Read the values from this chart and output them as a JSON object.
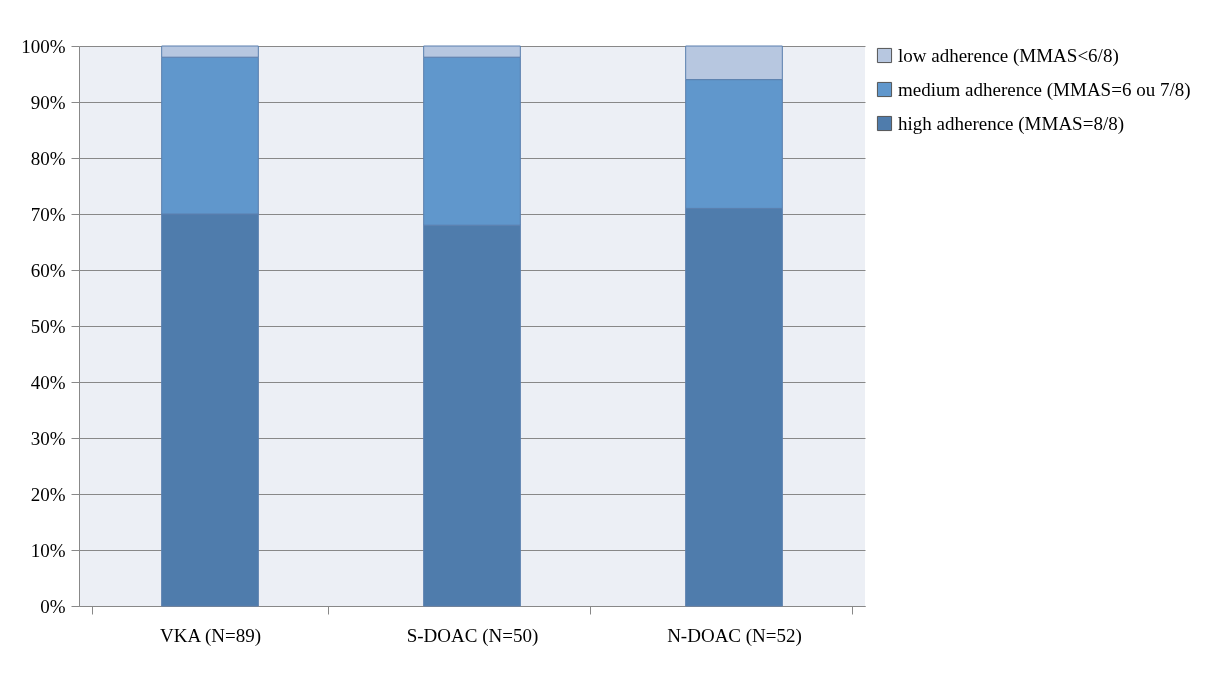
{
  "chart_data": {
    "type": "bar",
    "stacked": true,
    "categories": [
      "VKA (N=89)",
      "S-DOAC (N=50)",
      "N-DOAC (N=52)"
    ],
    "series": [
      {
        "name": "high adherence (MMAS=8/8)",
        "color": "#4f7cac",
        "values": [
          70,
          68,
          71
        ]
      },
      {
        "name": "medium adherence (MMAS=6 ou 7/8)",
        "color": "#6097cc",
        "values": [
          28,
          30,
          23
        ]
      },
      {
        "name": "low adherence (MMAS<6/8)",
        "color": "#b7c7e0",
        "values": [
          2,
          2,
          6
        ]
      }
    ],
    "ylim": [
      0,
      100
    ],
    "yticks": [
      {
        "value": 0,
        "label": "0%"
      },
      {
        "value": 10,
        "label": "10%"
      },
      {
        "value": 20,
        "label": "20%"
      },
      {
        "value": 30,
        "label": "30%"
      },
      {
        "value": 40,
        "label": "40%"
      },
      {
        "value": 50,
        "label": "50%"
      },
      {
        "value": 60,
        "label": "60%"
      },
      {
        "value": 70,
        "label": "70%"
      },
      {
        "value": 80,
        "label": "80%"
      },
      {
        "value": 90,
        "label": "90%"
      },
      {
        "value": 100,
        "label": "100%"
      }
    ],
    "grid": "y",
    "legend": "right"
  }
}
